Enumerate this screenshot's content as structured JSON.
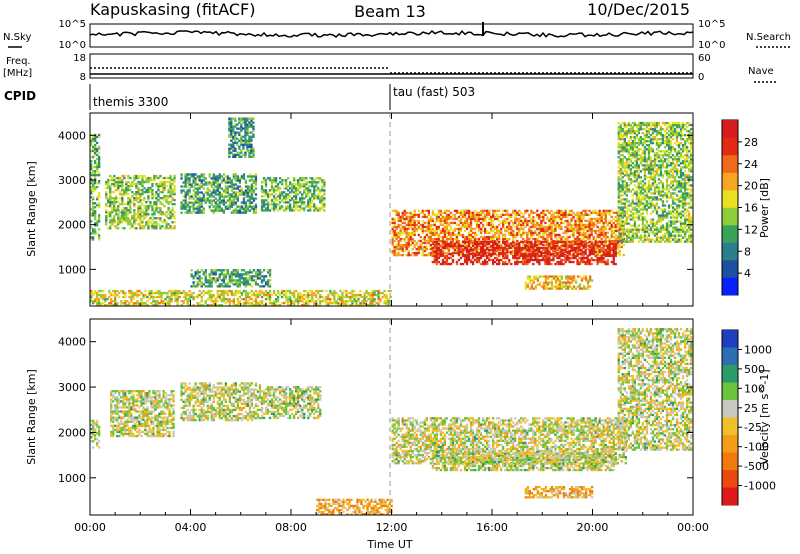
{
  "header": {
    "station": "Kapuskasing (fitACF)",
    "beam": "Beam 13",
    "date": "10/Dec/2015"
  },
  "small_panels": {
    "nsky_label": "N.Sky",
    "nsearch_label": "N.Search",
    "freq_label_1": "Freq.",
    "freq_label_2": "[MHz]",
    "nave_label": "Nave",
    "cpid_label": "CPID",
    "noise_left_top": "10^5",
    "noise_left_bot": "10^0",
    "noise_right_top": "10^5",
    "noise_right_bot": "10^0",
    "freq_left_top": "18",
    "freq_left_bot": "8",
    "nave_right_top": "60",
    "nave_right_bot": "0",
    "cpid_1": "themis 3300",
    "cpid_2": "tau (fast) 503"
  },
  "chart_data": [
    {
      "type": "heatmap",
      "panel": "power",
      "ylabel": "Slant Range [km]",
      "xlabel": "Time UT",
      "xlim": [
        0,
        24
      ],
      "ylim": [
        180,
        4500
      ],
      "xticks": [
        "00:00",
        "04:00",
        "08:00",
        "12:00",
        "16:00",
        "20:00",
        "00:00"
      ],
      "yticks": [
        1000,
        2000,
        3000,
        4000
      ],
      "colorbar": {
        "label": "Power [dB]",
        "ticks": [
          "4",
          "8",
          "12",
          "16",
          "20",
          "24",
          "28"
        ],
        "colors": [
          "#0a1eff",
          "#1e4fa0",
          "#2b7f8c",
          "#3aa35a",
          "#8ccd38",
          "#e8e020",
          "#f5a623",
          "#f06a1a",
          "#e42a12",
          "#d61e1e"
        ]
      },
      "echo_regions": [
        {
          "t0": 0.0,
          "t1": 0.4,
          "r0": 1650,
          "r1": 4000,
          "level": 0.4
        },
        {
          "t0": 0.6,
          "t1": 3.4,
          "r0": 1900,
          "r1": 3100,
          "level": 0.45
        },
        {
          "t0": 3.6,
          "t1": 6.6,
          "r0": 2250,
          "r1": 3150,
          "level": 0.35
        },
        {
          "t0": 6.8,
          "t1": 9.3,
          "r0": 2300,
          "r1": 3050,
          "level": 0.4
        },
        {
          "t0": 5.5,
          "t1": 6.5,
          "r0": 3500,
          "r1": 4400,
          "level": 0.3
        },
        {
          "t0": 4.0,
          "t1": 7.2,
          "r0": 600,
          "r1": 1000,
          "level": 0.35
        },
        {
          "t0": 0.0,
          "t1": 12.0,
          "r0": 180,
          "r1": 500,
          "level": 0.55
        },
        {
          "t0": 12.0,
          "t1": 21.2,
          "r0": 1300,
          "r1": 2300,
          "level": 0.7
        },
        {
          "t0": 13.6,
          "t1": 20.9,
          "r0": 1100,
          "r1": 1600,
          "level": 0.9
        },
        {
          "t0": 17.3,
          "t1": 20.0,
          "r0": 550,
          "r1": 850,
          "level": 0.6
        },
        {
          "t0": 21.0,
          "t1": 23.9,
          "r0": 1600,
          "r1": 4300,
          "level": 0.45
        }
      ]
    },
    {
      "type": "heatmap",
      "panel": "velocity",
      "ylabel": "Slant Range [km]",
      "xlabel": "Time UT",
      "xlim": [
        0,
        24
      ],
      "ylim": [
        180,
        4500
      ],
      "xticks": [
        "00:00",
        "04:00",
        "08:00",
        "12:00",
        "16:00",
        "20:00",
        "00:00"
      ],
      "yticks": [
        1000,
        2000,
        3000,
        4000
      ],
      "colorbar": {
        "label": "Velocity [m s^-1]",
        "ticks": [
          "1000",
          "500",
          "100",
          "25",
          "-25",
          "-100",
          "-500",
          "-1000"
        ],
        "colors": [
          "#1f3fbf",
          "#2e6fb2",
          "#2d9a6a",
          "#6cc33a",
          "#c8c8c0",
          "#f0c02a",
          "#f59c1a",
          "#f07a10",
          "#e84a10",
          "#e01a1a"
        ]
      },
      "echo_regions": [
        {
          "t0": 0.0,
          "t1": 0.4,
          "r0": 1650,
          "r1": 2300,
          "level": 0.45
        },
        {
          "t0": 0.8,
          "t1": 3.3,
          "r0": 1900,
          "r1": 2900,
          "level": 0.45
        },
        {
          "t0": 3.6,
          "t1": 6.8,
          "r0": 2250,
          "r1": 3100,
          "level": 0.45
        },
        {
          "t0": 6.8,
          "t1": 9.2,
          "r0": 2300,
          "r1": 3000,
          "level": 0.45
        },
        {
          "t0": 12.0,
          "t1": 21.3,
          "r0": 1300,
          "r1": 2300,
          "level": 0.46
        },
        {
          "t0": 13.6,
          "t1": 20.9,
          "r0": 1150,
          "r1": 1600,
          "level": 0.45
        },
        {
          "t0": 17.3,
          "t1": 20.0,
          "r0": 550,
          "r1": 800,
          "level": 0.62
        },
        {
          "t0": 9.0,
          "t1": 12.0,
          "r0": 180,
          "r1": 500,
          "level": 0.62
        },
        {
          "t0": 21.0,
          "t1": 23.9,
          "r0": 1600,
          "r1": 4300,
          "level": 0.45
        }
      ]
    }
  ]
}
